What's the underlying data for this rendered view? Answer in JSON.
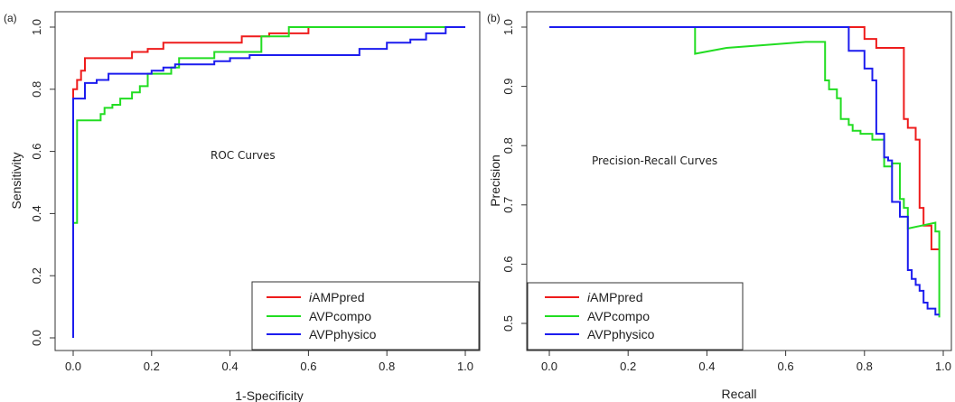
{
  "chart_data": [
    {
      "type": "line",
      "panel_label": "(a)",
      "title": "ROC Curves",
      "xlabel": "1-Specificity",
      "ylabel": "Sensitivity",
      "xlim": [
        0,
        1
      ],
      "ylim": [
        0,
        1
      ],
      "x_ticks": [
        "0.0",
        "0.2",
        "0.4",
        "0.6",
        "0.8",
        "1.0"
      ],
      "y_ticks": [
        "0.0",
        "0.2",
        "0.4",
        "0.6",
        "0.8",
        "1.0"
      ],
      "grid": false,
      "legend_position": "bottom-right",
      "series": [
        {
          "name_prefix": "i",
          "name": "AMPpred",
          "color": "#ee1c1c",
          "points": [
            [
              0,
              0.77
            ],
            [
              0,
              0.8
            ],
            [
              0.01,
              0.8
            ],
            [
              0.01,
              0.83
            ],
            [
              0.02,
              0.83
            ],
            [
              0.02,
              0.86
            ],
            [
              0.03,
              0.86
            ],
            [
              0.03,
              0.9
            ],
            [
              0.15,
              0.9
            ],
            [
              0.15,
              0.92
            ],
            [
              0.19,
              0.92
            ],
            [
              0.19,
              0.93
            ],
            [
              0.23,
              0.93
            ],
            [
              0.23,
              0.95
            ],
            [
              0.43,
              0.95
            ],
            [
              0.43,
              0.97
            ],
            [
              0.5,
              0.97
            ],
            [
              0.5,
              0.98
            ],
            [
              0.6,
              0.98
            ],
            [
              0.6,
              1.0
            ],
            [
              1,
              1.0
            ]
          ]
        },
        {
          "name": "AVPcompo",
          "color": "#22dd22",
          "points": [
            [
              0,
              0.37
            ],
            [
              0.01,
              0.37
            ],
            [
              0.01,
              0.7
            ],
            [
              0.07,
              0.7
            ],
            [
              0.07,
              0.72
            ],
            [
              0.08,
              0.72
            ],
            [
              0.08,
              0.74
            ],
            [
              0.1,
              0.74
            ],
            [
              0.1,
              0.75
            ],
            [
              0.12,
              0.75
            ],
            [
              0.12,
              0.77
            ],
            [
              0.15,
              0.77
            ],
            [
              0.15,
              0.79
            ],
            [
              0.17,
              0.79
            ],
            [
              0.17,
              0.81
            ],
            [
              0.19,
              0.81
            ],
            [
              0.19,
              0.85
            ],
            [
              0.25,
              0.85
            ],
            [
              0.25,
              0.87
            ],
            [
              0.27,
              0.87
            ],
            [
              0.27,
              0.9
            ],
            [
              0.36,
              0.9
            ],
            [
              0.36,
              0.92
            ],
            [
              0.48,
              0.92
            ],
            [
              0.48,
              0.97
            ],
            [
              0.55,
              0.97
            ],
            [
              0.55,
              1.0
            ],
            [
              1,
              1.0
            ]
          ]
        },
        {
          "name": "AVPphysico",
          "color": "#1c1cee",
          "points": [
            [
              0,
              0
            ],
            [
              0,
              0.77
            ],
            [
              0.03,
              0.77
            ],
            [
              0.03,
              0.82
            ],
            [
              0.06,
              0.82
            ],
            [
              0.06,
              0.83
            ],
            [
              0.09,
              0.83
            ],
            [
              0.09,
              0.85
            ],
            [
              0.2,
              0.85
            ],
            [
              0.2,
              0.86
            ],
            [
              0.23,
              0.86
            ],
            [
              0.23,
              0.87
            ],
            [
              0.26,
              0.87
            ],
            [
              0.26,
              0.88
            ],
            [
              0.36,
              0.88
            ],
            [
              0.36,
              0.89
            ],
            [
              0.4,
              0.89
            ],
            [
              0.4,
              0.9
            ],
            [
              0.45,
              0.9
            ],
            [
              0.45,
              0.91
            ],
            [
              0.73,
              0.91
            ],
            [
              0.73,
              0.93
            ],
            [
              0.8,
              0.93
            ],
            [
              0.8,
              0.95
            ],
            [
              0.86,
              0.95
            ],
            [
              0.86,
              0.96
            ],
            [
              0.9,
              0.96
            ],
            [
              0.9,
              0.98
            ],
            [
              0.95,
              0.98
            ],
            [
              0.95,
              1.0
            ],
            [
              1,
              1.0
            ]
          ]
        }
      ]
    },
    {
      "type": "line",
      "panel_label": "(b)",
      "title": "Precision-Recall Curves",
      "xlabel": "Recall",
      "ylabel": "Precision",
      "xlim": [
        0,
        1
      ],
      "ylim": [
        0.5,
        1
      ],
      "x_ticks": [
        "0.0",
        "0.2",
        "0.4",
        "0.6",
        "0.8",
        "1.0"
      ],
      "y_ticks": [
        "0.5",
        "0.6",
        "0.7",
        "0.8",
        "0.9",
        "1.0"
      ],
      "grid": false,
      "legend_position": "bottom-left",
      "series": [
        {
          "name_prefix": "i",
          "name": "AMPpred",
          "color": "#ee1c1c",
          "points": [
            [
              0,
              1.0
            ],
            [
              0.8,
              1.0
            ],
            [
              0.8,
              0.98
            ],
            [
              0.83,
              0.98
            ],
            [
              0.83,
              0.965
            ],
            [
              0.9,
              0.965
            ],
            [
              0.9,
              0.845
            ],
            [
              0.91,
              0.845
            ],
            [
              0.91,
              0.83
            ],
            [
              0.93,
              0.83
            ],
            [
              0.93,
              0.81
            ],
            [
              0.94,
              0.81
            ],
            [
              0.94,
              0.695
            ],
            [
              0.95,
              0.695
            ],
            [
              0.95,
              0.665
            ],
            [
              0.97,
              0.665
            ],
            [
              0.97,
              0.625
            ],
            [
              0.99,
              0.625
            ]
          ]
        },
        {
          "name": "AVPcompo",
          "color": "#22dd22",
          "points": [
            [
              0,
              1.0
            ],
            [
              0.37,
              1.0
            ],
            [
              0.37,
              0.955
            ],
            [
              0.45,
              0.965
            ],
            [
              0.55,
              0.97
            ],
            [
              0.65,
              0.975
            ],
            [
              0.7,
              0.975
            ],
            [
              0.7,
              0.91
            ],
            [
              0.71,
              0.91
            ],
            [
              0.71,
              0.895
            ],
            [
              0.73,
              0.895
            ],
            [
              0.73,
              0.88
            ],
            [
              0.74,
              0.88
            ],
            [
              0.74,
              0.845
            ],
            [
              0.76,
              0.845
            ],
            [
              0.76,
              0.835
            ],
            [
              0.77,
              0.835
            ],
            [
              0.77,
              0.825
            ],
            [
              0.79,
              0.825
            ],
            [
              0.79,
              0.82
            ],
            [
              0.82,
              0.82
            ],
            [
              0.82,
              0.81
            ],
            [
              0.85,
              0.81
            ],
            [
              0.85,
              0.765
            ],
            [
              0.87,
              0.765
            ],
            [
              0.87,
              0.77
            ],
            [
              0.89,
              0.77
            ],
            [
              0.89,
              0.71
            ],
            [
              0.9,
              0.71
            ],
            [
              0.9,
              0.695
            ],
            [
              0.91,
              0.695
            ],
            [
              0.91,
              0.66
            ],
            [
              0.98,
              0.67
            ],
            [
              0.98,
              0.655
            ],
            [
              0.99,
              0.655
            ],
            [
              0.99,
              0.51
            ]
          ]
        },
        {
          "name": "AVPphysico",
          "color": "#1c1cee",
          "points": [
            [
              0,
              1.0
            ],
            [
              0.76,
              1.0
            ],
            [
              0.76,
              0.96
            ],
            [
              0.8,
              0.96
            ],
            [
              0.8,
              0.93
            ],
            [
              0.82,
              0.93
            ],
            [
              0.82,
              0.91
            ],
            [
              0.83,
              0.91
            ],
            [
              0.83,
              0.82
            ],
            [
              0.85,
              0.82
            ],
            [
              0.85,
              0.78
            ],
            [
              0.86,
              0.78
            ],
            [
              0.86,
              0.775
            ],
            [
              0.87,
              0.775
            ],
            [
              0.87,
              0.705
            ],
            [
              0.89,
              0.705
            ],
            [
              0.89,
              0.68
            ],
            [
              0.91,
              0.68
            ],
            [
              0.91,
              0.59
            ],
            [
              0.92,
              0.59
            ],
            [
              0.92,
              0.575
            ],
            [
              0.93,
              0.575
            ],
            [
              0.93,
              0.565
            ],
            [
              0.94,
              0.565
            ],
            [
              0.94,
              0.555
            ],
            [
              0.95,
              0.555
            ],
            [
              0.95,
              0.535
            ],
            [
              0.96,
              0.535
            ],
            [
              0.96,
              0.525
            ],
            [
              0.98,
              0.525
            ],
            [
              0.98,
              0.515
            ],
            [
              0.99,
              0.515
            ]
          ]
        }
      ]
    }
  ]
}
